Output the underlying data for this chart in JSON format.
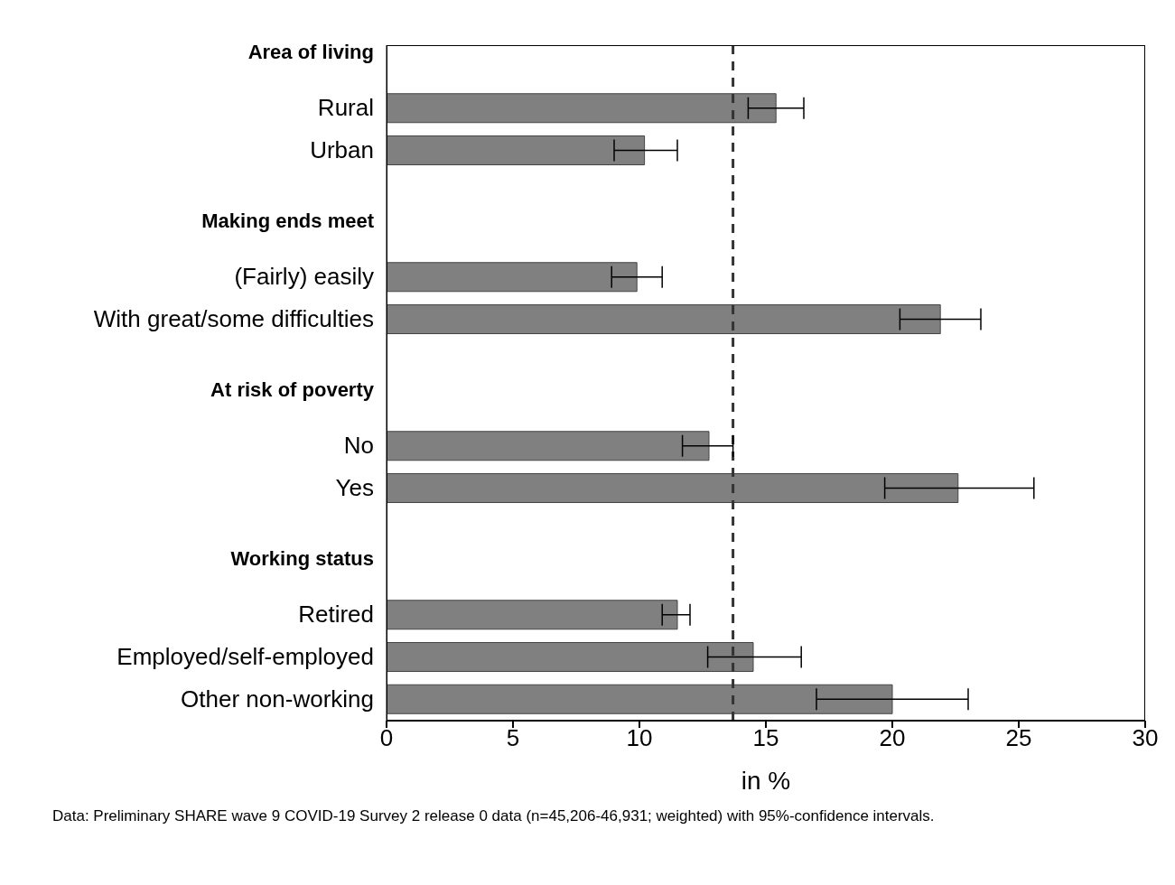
{
  "chart_data": {
    "type": "bar",
    "orientation": "horizontal",
    "categories": [
      "Area of living",
      "Rural",
      "Urban",
      null,
      "Making ends meet",
      "(Fairly) easily",
      "With great/some difficulties",
      null,
      "At risk of poverty",
      "No",
      "Yes",
      null,
      "Working status",
      "Retired",
      "Employed/self-employed",
      "Other non-working"
    ],
    "values": [
      null,
      15.4,
      10.2,
      null,
      null,
      9.9,
      21.9,
      null,
      null,
      12.75,
      22.6,
      null,
      null,
      11.5,
      14.5,
      20.0
    ],
    "errors": [
      null,
      [
        14.3,
        16.5
      ],
      [
        9.0,
        11.5
      ],
      null,
      null,
      [
        8.9,
        10.9
      ],
      [
        20.3,
        23.5
      ],
      null,
      null,
      [
        11.7,
        13.7
      ],
      [
        19.7,
        25.6
      ],
      null,
      null,
      [
        10.9,
        12.0
      ],
      [
        12.7,
        16.4
      ],
      [
        17.0,
        23.0
      ]
    ],
    "color": "#808080",
    "xlim": [
      0,
      30
    ],
    "xticks": [
      0,
      5,
      10,
      15,
      20,
      25,
      30
    ],
    "xlabel": "in %",
    "grid": false,
    "ref_lines": [
      {
        "axis": "x",
        "value": 13.7,
        "color": "#333333",
        "line_style": "dashed"
      }
    ],
    "annotations": [
      "Data: Preliminary SHARE wave 9 COVID-19 Survey 2 release 0 data (n=45,206-46,931; weighted) with 95%-confidence intervals."
    ]
  }
}
